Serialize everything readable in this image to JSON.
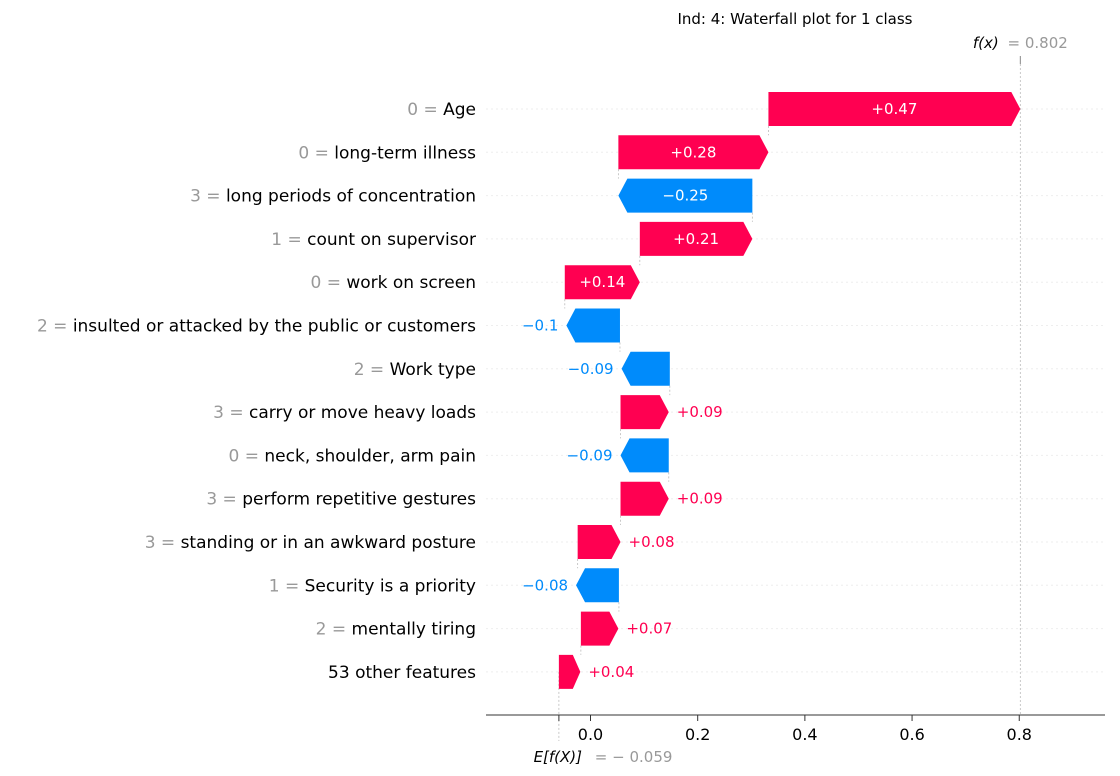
{
  "chart_data": {
    "type": "waterfall",
    "title": "Ind: 4: Waterfall plot for 1 class",
    "fx_label": "f(x)",
    "fx_value": "0.802",
    "base_label": "E[f(X)]",
    "base_value": "= − 0.059",
    "base": -0.059,
    "final": 0.802,
    "xlim": [
      -0.195,
      0.96
    ],
    "xticks": [
      0.0,
      0.2,
      0.4,
      0.6,
      0.8
    ],
    "xtick_labels": [
      "0.0",
      "0.2",
      "0.4",
      "0.6",
      "0.8"
    ],
    "colors": {
      "positive": "#ff0051",
      "negative": "#008bfb",
      "feature_value": "#999999",
      "text": "#000000",
      "grid": "#cccccc"
    },
    "features": [
      {
        "value": "0 =",
        "name": "Age",
        "label": "+0.47",
        "start": 0.332,
        "end": 0.802
      },
      {
        "value": "0 =",
        "name": "long-term illness",
        "label": "+0.28",
        "start": 0.052,
        "end": 0.332
      },
      {
        "value": "3 =",
        "name": "long periods of concentration",
        "label": "−0.25",
        "start": 0.302,
        "end": 0.052
      },
      {
        "value": "1 =",
        "name": "count on supervisor",
        "label": "+0.21",
        "start": 0.092,
        "end": 0.302
      },
      {
        "value": "0 =",
        "name": "work on screen",
        "label": "+0.14",
        "start": -0.048,
        "end": 0.092
      },
      {
        "value": "2 =",
        "name": "insulted or attacked by the public or customers",
        "label": "−0.1",
        "start": 0.055,
        "end": -0.045
      },
      {
        "value": "2 =",
        "name": "Work type",
        "label": "−0.09",
        "start": 0.148,
        "end": 0.058
      },
      {
        "value": "3 =",
        "name": "carry or move heavy loads",
        "label": "+0.09",
        "start": 0.056,
        "end": 0.146
      },
      {
        "value": "0 =",
        "name": "neck, shoulder, arm pain",
        "label": "−0.09",
        "start": 0.146,
        "end": 0.056
      },
      {
        "value": "3 =",
        "name": "perform repetitive gestures",
        "label": "+0.09",
        "start": 0.056,
        "end": 0.146
      },
      {
        "value": "3 =",
        "name": "standing or in an awkward posture",
        "label": "+0.08",
        "start": -0.024,
        "end": 0.056
      },
      {
        "value": "1 =",
        "name": "Security is a priority",
        "label": "−0.08",
        "start": 0.053,
        "end": -0.027
      },
      {
        "value": "2 =",
        "name": "mentally tiring",
        "label": "+0.07",
        "start": -0.018,
        "end": 0.052
      },
      {
        "value": "",
        "name": "53 other features",
        "label": "+0.04",
        "start": -0.059,
        "end": -0.019
      }
    ]
  }
}
